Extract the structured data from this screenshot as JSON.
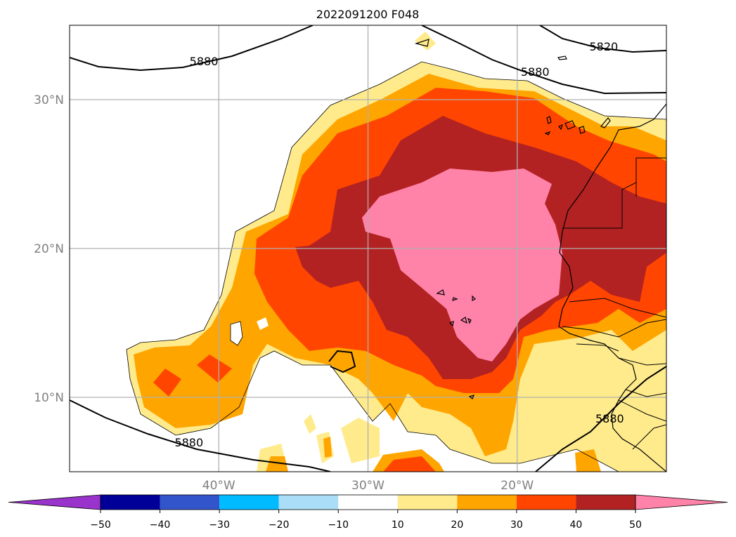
{
  "chart_data": {
    "type": "heatmap",
    "title": "2022091200 F048",
    "map": {
      "lon_range": [
        -50,
        -10
      ],
      "lat_range": [
        5,
        35
      ],
      "lon_ticks": [
        -40,
        -30,
        -20
      ],
      "lon_tick_labels": [
        "40°W",
        "30°W",
        "20°W"
      ],
      "lat_ticks": [
        10,
        20,
        30
      ],
      "lat_tick_labels": [
        "10°N",
        "20°N",
        "30°N"
      ],
      "grid": true
    },
    "colorbar": {
      "levels": [
        -50,
        -40,
        -30,
        -20,
        -10,
        10,
        20,
        30,
        40,
        50
      ],
      "tick_labels": [
        "−50",
        "−40",
        "−30",
        "−20",
        "−10",
        "10",
        "20",
        "30",
        "40",
        "50"
      ],
      "colors": [
        "#9933cc",
        "#000099",
        "#3355cc",
        "#00bbff",
        "#aaddf7",
        "#ffffff",
        "#ffeb8c",
        "#ffa500",
        "#ff4500",
        "#b22222",
        "#ff82a9"
      ],
      "extend": "both"
    },
    "contour_labels": [
      {
        "text": "5880",
        "lon": -41.0,
        "lat": 32.3
      },
      {
        "text": "5820",
        "lon": -14.2,
        "lat": 33.3
      },
      {
        "text": "5880",
        "lon": -18.8,
        "lat": 31.6
      },
      {
        "text": "5880",
        "lon": -42.0,
        "lat": 6.7
      },
      {
        "text": "5880",
        "lon": -13.8,
        "lat": 8.3
      }
    ]
  }
}
